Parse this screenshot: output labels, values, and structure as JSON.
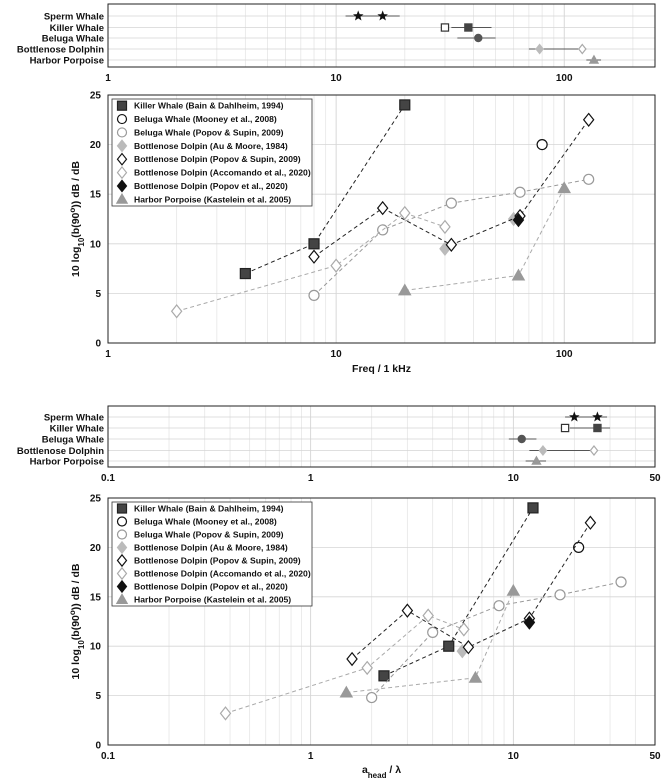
{
  "chart_data": [
    {
      "type": "scatter",
      "xscale": "log",
      "xlim": [
        1,
        250
      ],
      "xticks": [
        "1",
        "10",
        "100"
      ],
      "categories": [
        "Sperm Whale",
        "Killer Whale",
        "Beluga Whale",
        "Bottlenose Dolphin",
        "Harbor Porpoise"
      ],
      "grid": true,
      "series": [
        {
          "category": "Sperm Whale",
          "points": [
            {
              "x": 12.5,
              "marker": "star",
              "fill": "#111111"
            },
            {
              "x": 16,
              "marker": "star",
              "fill": "#111111"
            }
          ],
          "range": [
            11,
            19
          ]
        },
        {
          "category": "Killer Whale",
          "points": [
            {
              "x": 30,
              "marker": "square",
              "fill": "#ffffff",
              "stroke": "#333333"
            },
            {
              "x": 38,
              "marker": "square",
              "fill": "#444444"
            }
          ],
          "range": [
            32,
            48
          ]
        },
        {
          "category": "Beluga Whale",
          "points": [
            {
              "x": 42,
              "marker": "circle",
              "fill": "#555555"
            }
          ],
          "range": [
            34,
            50
          ]
        },
        {
          "category": "Bottlenose Dolphin",
          "points": [
            {
              "x": 78,
              "marker": "diamond",
              "fill": "#bbbbbb"
            },
            {
              "x": 120,
              "marker": "diamond",
              "fill": "#ffffff",
              "stroke": "#aaaaaa"
            }
          ],
          "range": [
            70,
            125
          ]
        },
        {
          "category": "Harbor Porpoise",
          "points": [
            {
              "x": 135,
              "marker": "triangle",
              "fill": "#999999"
            }
          ],
          "range": [
            125,
            145
          ]
        }
      ]
    },
    {
      "type": "line",
      "xscale": "log",
      "xlim": [
        1,
        250
      ],
      "ylim": [
        0,
        25
      ],
      "xlabel": "Freq / 1 kHz",
      "ylabel": "10 log10(b(90°)) dB / dB",
      "xticks": [
        "1",
        "10",
        "100"
      ],
      "yticks": [
        "0",
        "5",
        "10",
        "15",
        "20",
        "25"
      ],
      "legend_position": "top-left",
      "grid": true,
      "series": [
        {
          "name": "Killer Whale (Bain & Dahlheim, 1994)",
          "marker": "square",
          "fill": "#444444",
          "stroke": "#222222",
          "line": "#222222",
          "x": [
            4,
            8,
            20
          ],
          "y": [
            7,
            10,
            24
          ]
        },
        {
          "name": "Beluga Whale (Mooney et al., 2008)",
          "marker": "circle",
          "fill": "#ffffff",
          "stroke": "#111111",
          "line": null,
          "x": [
            80
          ],
          "y": [
            20
          ]
        },
        {
          "name": "Beluga Whale (Popov & Supin, 2009)",
          "marker": "circle",
          "fill": "#ffffff",
          "stroke": "#999999",
          "line": "#999999",
          "x": [
            8,
            16,
            32,
            64,
            128
          ],
          "y": [
            4.8,
            11.4,
            14.1,
            15.2,
            16.5
          ]
        },
        {
          "name": "Bottlenose Dolpin (Au & Moore, 1984)",
          "marker": "diamond",
          "fill": "#bbbbbb",
          "stroke": "#bbbbbb",
          "line": null,
          "x": [
            30,
            60
          ],
          "y": [
            9.5,
            12.5
          ]
        },
        {
          "name": "Bottlenose Dolpin (Popov & Supin, 2009)",
          "marker": "diamond",
          "fill": "#ffffff",
          "stroke": "#111111",
          "line": "#222222",
          "x": [
            8,
            16,
            32,
            64,
            128
          ],
          "y": [
            8.7,
            13.6,
            9.9,
            12.8,
            22.5
          ]
        },
        {
          "name": "Bottlenose Dolpin (Accomando et al., 2020)",
          "marker": "diamond",
          "fill": "#ffffff",
          "stroke": "#aaaaaa",
          "line": "#aaaaaa",
          "x": [
            2,
            10,
            20,
            30
          ],
          "y": [
            3.2,
            7.8,
            13.1,
            11.7
          ]
        },
        {
          "name": "Bottlenose Dolpin (Popov et al., 2020)",
          "marker": "diamond",
          "fill": "#111111",
          "stroke": "#111111",
          "line": null,
          "x": [
            63
          ],
          "y": [
            12.4
          ]
        },
        {
          "name": "Harbor Porpoise (Kastelein et al. 2005)",
          "marker": "triangle",
          "fill": "#999999",
          "stroke": "#999999",
          "line": "#aaaaaa",
          "x": [
            20,
            63,
            100
          ],
          "y": [
            5.3,
            6.8,
            15.6
          ]
        }
      ]
    },
    {
      "type": "scatter",
      "xscale": "log",
      "xlim": [
        0.1,
        50
      ],
      "xticks": [
        "0.1",
        "1",
        "10",
        "50"
      ],
      "categories": [
        "Sperm Whale",
        "Killer Whale",
        "Beluga Whale",
        "Bottlenose Dolphin",
        "Harbor Porpoise"
      ],
      "grid": true,
      "series": [
        {
          "category": "Sperm Whale",
          "points": [
            {
              "x": 20,
              "marker": "star",
              "fill": "#111111"
            },
            {
              "x": 26,
              "marker": "star",
              "fill": "#111111"
            }
          ],
          "range": [
            18,
            29
          ]
        },
        {
          "category": "Killer Whale",
          "points": [
            {
              "x": 18,
              "marker": "square",
              "fill": "#ffffff",
              "stroke": "#333333"
            },
            {
              "x": 26,
              "marker": "square",
              "fill": "#444444"
            }
          ],
          "range": [
            19,
            30
          ]
        },
        {
          "category": "Beluga Whale",
          "points": [
            {
              "x": 11,
              "marker": "circle",
              "fill": "#555555"
            }
          ],
          "range": [
            9.5,
            13
          ]
        },
        {
          "category": "Bottlenose Dolphin",
          "points": [
            {
              "x": 14,
              "marker": "diamond",
              "fill": "#bbbbbb"
            },
            {
              "x": 25,
              "marker": "diamond",
              "fill": "#ffffff",
              "stroke": "#aaaaaa"
            }
          ],
          "range": [
            12,
            26
          ]
        },
        {
          "category": "Harbor Porpoise",
          "points": [
            {
              "x": 13,
              "marker": "triangle",
              "fill": "#999999"
            }
          ],
          "range": [
            11.5,
            14.5
          ]
        }
      ]
    },
    {
      "type": "line",
      "xscale": "log",
      "xlim": [
        0.1,
        50
      ],
      "ylim": [
        0,
        25
      ],
      "xlabel": "a_head / λ",
      "ylabel": "10 log10(b(90°)) dB / dB",
      "xticks": [
        "0.1",
        "1",
        "10",
        "50"
      ],
      "yticks": [
        "0",
        "5",
        "10",
        "15",
        "20",
        "25"
      ],
      "legend_position": "top-left",
      "grid": true,
      "series": [
        {
          "name": "Killer Whale (Bain & Dahlheim, 1994)",
          "marker": "square",
          "fill": "#444444",
          "stroke": "#222222",
          "line": "#222222",
          "x": [
            2.3,
            4.8,
            12.5
          ],
          "y": [
            7,
            10,
            24
          ]
        },
        {
          "name": "Beluga Whale (Mooney et al., 2008)",
          "marker": "circle",
          "fill": "#ffffff",
          "stroke": "#111111",
          "line": null,
          "x": [
            21
          ],
          "y": [
            20
          ]
        },
        {
          "name": "Beluga Whale (Popov & Supin, 2009)",
          "marker": "circle",
          "fill": "#ffffff",
          "stroke": "#999999",
          "line": "#999999",
          "x": [
            2,
            4,
            8.5,
            17,
            34
          ],
          "y": [
            4.8,
            11.4,
            14.1,
            15.2,
            16.5
          ]
        },
        {
          "name": "Bottlenose Dolpin (Au & Moore, 1984)",
          "marker": "diamond",
          "fill": "#bbbbbb",
          "stroke": "#bbbbbb",
          "line": null,
          "x": [
            5.6,
            12
          ],
          "y": [
            9.5,
            12.5
          ]
        },
        {
          "name": "Bottlenose Dolpin (Popov & Supin, 2009)",
          "marker": "diamond",
          "fill": "#ffffff",
          "stroke": "#111111",
          "line": "#222222",
          "x": [
            1.6,
            3,
            6,
            12,
            24
          ],
          "y": [
            8.7,
            13.6,
            9.9,
            12.8,
            22.5
          ]
        },
        {
          "name": "Bottlenose Dolpin (Accomando et al., 2020)",
          "marker": "diamond",
          "fill": "#ffffff",
          "stroke": "#aaaaaa",
          "line": "#aaaaaa",
          "x": [
            0.38,
            1.9,
            3.8,
            5.7
          ],
          "y": [
            3.2,
            7.8,
            13.1,
            11.7
          ]
        },
        {
          "name": "Bottlenose Dolpin (Popov et al., 2020)",
          "marker": "diamond",
          "fill": "#111111",
          "stroke": "#111111",
          "line": null,
          "x": [
            12
          ],
          "y": [
            12.4
          ]
        },
        {
          "name": "Harbor Porpoise (Kastelein et al. 2005)",
          "marker": "triangle",
          "fill": "#999999",
          "stroke": "#999999",
          "line": "#aaaaaa",
          "x": [
            1.5,
            6.5,
            10
          ],
          "y": [
            5.3,
            6.8,
            15.6
          ]
        }
      ]
    }
  ]
}
